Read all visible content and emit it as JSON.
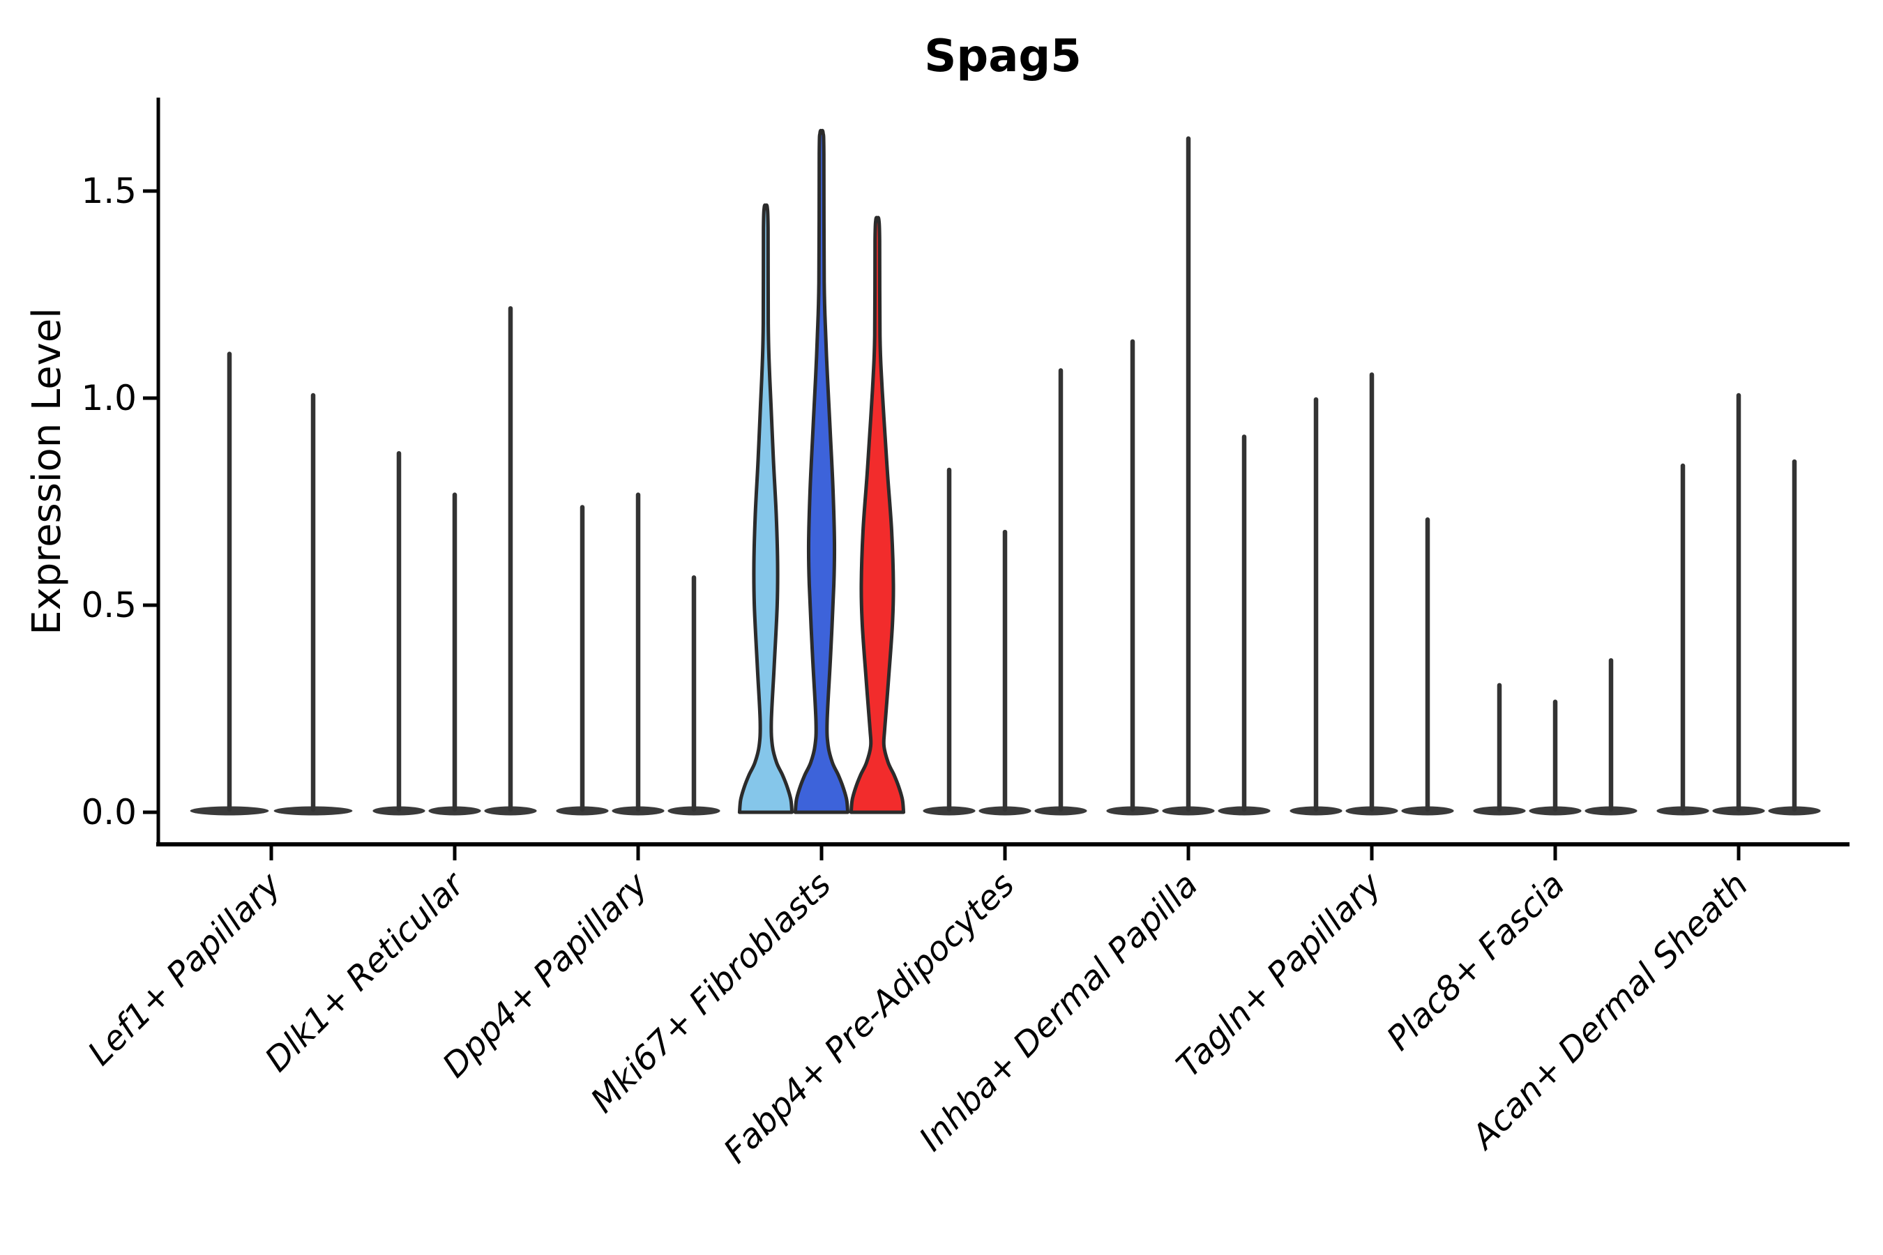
{
  "chart_data": {
    "type": "violin",
    "title": "Spag5",
    "xlabel": "",
    "ylabel": "Expression Level",
    "ytick_labels": [
      "0.0",
      "0.5",
      "1.0",
      "1.5"
    ],
    "ytick_values": [
      0,
      0.5,
      1.0,
      1.5
    ],
    "ylim": [
      -0.08,
      1.73
    ],
    "grid": false,
    "legend_position": "none",
    "axis_color": "#000000",
    "violin_line_color": "#333333",
    "violin_edge_color": "#2b2b2b",
    "highlighted_category": "Mki67+ Fibroblasts",
    "highlight_colors": [
      "#85C6EA",
      "#3D63DA",
      "#F22C2C"
    ],
    "categories": [
      "Lef1+ Papillary",
      "Dlk1+ Reticular",
      "Dpp4+ Papillary",
      "Mki67+ Fibroblasts",
      "Fabp4+ Pre-Adipocytes",
      "Inhba+ Dermal Papilla",
      "Tagln+ Papillary",
      "Plac8+ Fascia",
      "Acan+ Dermal Sheath"
    ],
    "groups": [
      {
        "category": "Lef1+ Papillary",
        "violins": [
          {
            "max": 1.11
          },
          {
            "max": 1.01
          }
        ]
      },
      {
        "category": "Dlk1+ Reticular",
        "violins": [
          {
            "max": 0.87
          },
          {
            "max": 0.77
          },
          {
            "max": 1.22
          }
        ]
      },
      {
        "category": "Dpp4+ Papillary",
        "violins": [
          {
            "max": 0.74
          },
          {
            "max": 0.77
          },
          {
            "max": 0.57
          }
        ]
      },
      {
        "category": "Mki67+ Fibroblasts",
        "violins": [
          {
            "max": 1.46,
            "fill": "#85C6EA",
            "profile": [
              [
                0.22,
                0.2
              ],
              [
                0.35,
                0.3
              ],
              [
                0.5,
                0.41
              ],
              [
                0.6,
                0.425
              ],
              [
                0.72,
                0.375
              ],
              [
                0.85,
                0.275
              ],
              [
                0.98,
                0.19
              ],
              [
                1.08,
                0.125
              ],
              [
                1.18,
                0.09
              ]
            ]
          },
          {
            "max": 1.64,
            "fill": "#3D63DA",
            "profile": [
              [
                0.22,
                0.2
              ],
              [
                0.38,
                0.325
              ],
              [
                0.55,
                0.44
              ],
              [
                0.65,
                0.4625
              ],
              [
                0.78,
                0.41
              ],
              [
                0.92,
                0.31
              ],
              [
                1.05,
                0.2125
              ],
              [
                1.15,
                0.15
              ],
              [
                1.28,
                0.095
              ]
            ]
          },
          {
            "max": 1.43,
            "fill": "#F22C2C",
            "profile": [
              [
                0.2,
                0.2625
              ],
              [
                0.32,
                0.4
              ],
              [
                0.45,
                0.5375
              ],
              [
                0.55,
                0.575
              ],
              [
                0.68,
                0.5125
              ],
              [
                0.82,
                0.3625
              ],
              [
                0.95,
                0.2375
              ],
              [
                1.05,
                0.15
              ],
              [
                1.15,
                0.095
              ]
            ]
          }
        ]
      },
      {
        "category": "Fabp4+ Pre-Adipocytes",
        "violins": [
          {
            "max": 0.83
          },
          {
            "max": 0.68
          },
          {
            "max": 1.07
          }
        ]
      },
      {
        "category": "Inhba+ Dermal Papilla",
        "violins": [
          {
            "max": 1.14
          },
          {
            "max": 1.63
          },
          {
            "max": 0.91
          }
        ]
      },
      {
        "category": "Tagln+ Papillary",
        "violins": [
          {
            "max": 1.0
          },
          {
            "max": 1.06
          },
          {
            "max": 0.71
          }
        ]
      },
      {
        "category": "Plac8+ Fascia",
        "violins": [
          {
            "max": 0.31
          },
          {
            "max": 0.27
          },
          {
            "max": 0.37
          }
        ]
      },
      {
        "category": "Acan+ Dermal Sheath",
        "violins": [
          {
            "max": 0.84
          },
          {
            "max": 1.01
          },
          {
            "max": 0.85
          }
        ]
      }
    ]
  }
}
